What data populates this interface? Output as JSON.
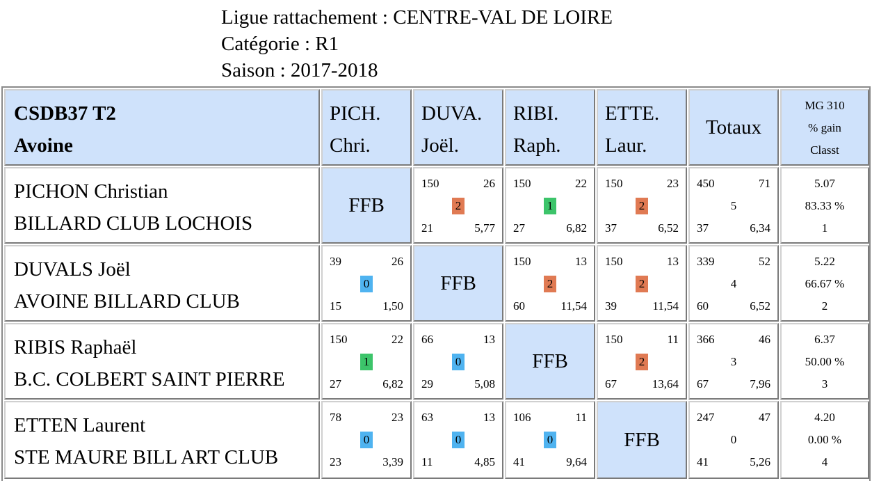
{
  "header": {
    "ligue": "Ligue rattachement : CENTRE-VAL DE LOIRE",
    "categorie": "Catégorie : R1",
    "saison": "Saison : 2017-2018"
  },
  "team": {
    "line1": "CSDB37 T2",
    "line2": "Avoine"
  },
  "columns": [
    {
      "line1": "PICH.",
      "line2": "Chri."
    },
    {
      "line1": "DUVA.",
      "line2": "Joël."
    },
    {
      "line1": "RIBI.",
      "line2": "Raph."
    },
    {
      "line1": "ETTE.",
      "line2": "Laur."
    }
  ],
  "totals_label": "Totaux",
  "mg_header": {
    "line1": "MG 310",
    "line2": "% gain",
    "line3": "Classt"
  },
  "ffb_label": "FFB",
  "badge_colors": {
    "0": "#4fb3f0",
    "1": "#3cc46a",
    "2": "#e07a53"
  },
  "players": [
    {
      "name": "PICHON Christian",
      "club": "BILLARD CLUB LOCHOIS",
      "matches": [
        null,
        {
          "points": "150",
          "innings": "26",
          "result": "2",
          "high": "21",
          "avg": "5,77"
        },
        {
          "points": "150",
          "innings": "22",
          "result": "1",
          "high": "27",
          "avg": "6,82"
        },
        {
          "points": "150",
          "innings": "23",
          "result": "2",
          "high": "37",
          "avg": "6,52"
        }
      ],
      "totals": {
        "points": "450",
        "innings": "71",
        "match_points": "5",
        "high": "37",
        "avg": "6,34"
      },
      "mg": "5.07",
      "pct": "83.33 %",
      "rank": "1"
    },
    {
      "name": "DUVALS Joël",
      "club": "AVOINE BILLARD CLUB",
      "matches": [
        {
          "points": "39",
          "innings": "26",
          "result": "0",
          "high": "15",
          "avg": "1,50"
        },
        null,
        {
          "points": "150",
          "innings": "13",
          "result": "2",
          "high": "60",
          "avg": "11,54"
        },
        {
          "points": "150",
          "innings": "13",
          "result": "2",
          "high": "39",
          "avg": "11,54"
        }
      ],
      "totals": {
        "points": "339",
        "innings": "52",
        "match_points": "4",
        "high": "60",
        "avg": "6,52"
      },
      "mg": "5.22",
      "pct": "66.67 %",
      "rank": "2"
    },
    {
      "name": "RIBIS Raphaël",
      "club": "B.C. COLBERT SAINT PIERRE",
      "matches": [
        {
          "points": "150",
          "innings": "22",
          "result": "1",
          "high": "27",
          "avg": "6,82"
        },
        {
          "points": "66",
          "innings": "13",
          "result": "0",
          "high": "29",
          "avg": "5,08"
        },
        null,
        {
          "points": "150",
          "innings": "11",
          "result": "2",
          "high": "67",
          "avg": "13,64"
        }
      ],
      "totals": {
        "points": "366",
        "innings": "46",
        "match_points": "3",
        "high": "67",
        "avg": "7,96"
      },
      "mg": "6.37",
      "pct": "50.00 %",
      "rank": "3"
    },
    {
      "name": "ETTEN Laurent",
      "club": "STE MAURE BILL ART CLUB",
      "matches": [
        {
          "points": "78",
          "innings": "23",
          "result": "0",
          "high": "23",
          "avg": "3,39"
        },
        {
          "points": "63",
          "innings": "13",
          "result": "0",
          "high": "11",
          "avg": "4,85"
        },
        {
          "points": "106",
          "innings": "11",
          "result": "0",
          "high": "41",
          "avg": "9,64"
        },
        null
      ],
      "totals": {
        "points": "247",
        "innings": "47",
        "match_points": "0",
        "high": "41",
        "avg": "5,26"
      },
      "mg": "4.20",
      "pct": "0.00 %",
      "rank": "4"
    }
  ]
}
